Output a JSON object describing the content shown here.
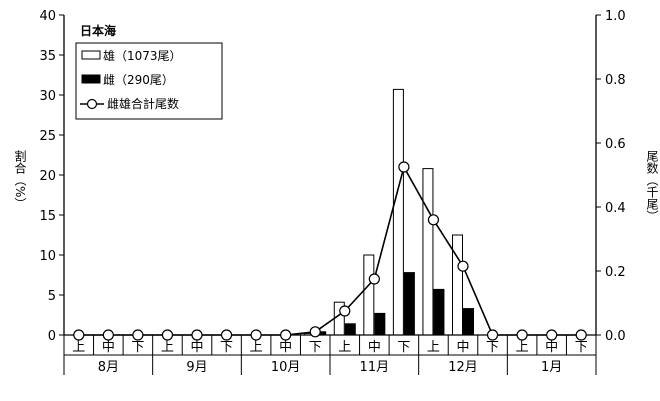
{
  "chart_data": {
    "type": "bar",
    "title": "日本海",
    "ylabel_left": "割合（%）",
    "ylabel_right": "尾数（千尾）",
    "ylim_left": [
      0,
      40
    ],
    "ylim_right": [
      0,
      1.0
    ],
    "yticks_left": [
      "0",
      "5",
      "10",
      "15",
      "20",
      "25",
      "30",
      "35",
      "40"
    ],
    "yticks_right": [
      "0.0",
      "0.2",
      "0.4",
      "0.6",
      "0.8",
      "1.0"
    ],
    "months": [
      "8月",
      "9月",
      "10月",
      "11月",
      "12月",
      "1月"
    ],
    "periods": [
      "上",
      "中",
      "下"
    ],
    "grid": false,
    "legend_position": "top-left",
    "series": [
      {
        "name": "雄（1073尾）",
        "kind": "bar",
        "axis": "left",
        "fill": "#ffffff",
        "values": [
          0,
          0,
          0,
          0,
          0,
          0,
          0,
          0,
          0.2,
          4.1,
          10.0,
          30.7,
          20.8,
          12.5,
          0,
          0,
          0,
          0
        ]
      },
      {
        "name": "雌（290尾）",
        "kind": "bar",
        "axis": "left",
        "fill": "#000000",
        "values": [
          0,
          0,
          0,
          0,
          0,
          0,
          0,
          0,
          0.4,
          1.4,
          2.7,
          7.8,
          5.7,
          3.3,
          0,
          0,
          0,
          0
        ]
      },
      {
        "name": "雌雄合計尾数",
        "kind": "line",
        "axis": "right",
        "values": [
          0,
          0,
          0,
          0,
          0,
          0,
          0,
          0,
          0.01,
          0.075,
          0.175,
          0.525,
          0.36,
          0.215,
          0,
          0,
          0,
          0
        ]
      }
    ]
  }
}
